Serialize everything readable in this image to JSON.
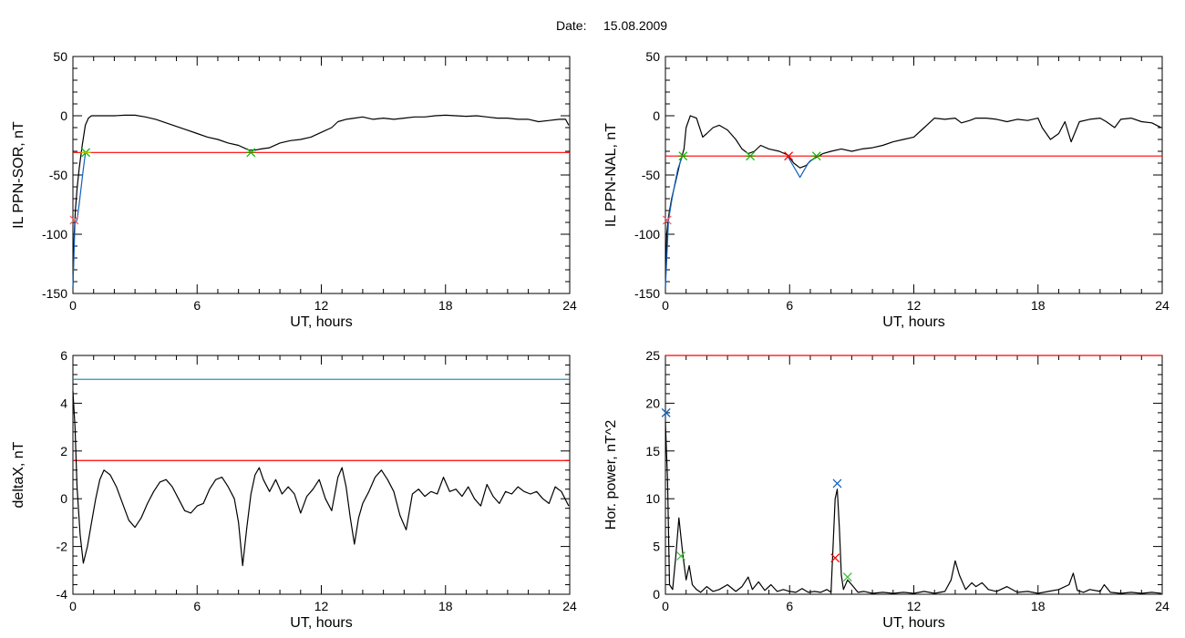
{
  "header": {
    "date_label": "Date:",
    "date_value": "15.08.2009"
  },
  "chart_data": [
    {
      "type": "line",
      "ylabel": "IL PPN-SOR, nT",
      "xlabel": "UT, hours",
      "xlim": [
        0,
        24
      ],
      "ylim": [
        -150,
        50
      ],
      "xticks": [
        0,
        6,
        12,
        18,
        24
      ],
      "yticks": [
        -150,
        -100,
        -50,
        0,
        50
      ],
      "grid": false,
      "threshold": {
        "value": -31,
        "color": "#ff0000"
      },
      "series": [
        {
          "color": "#000000",
          "x": [
            0,
            0.06,
            0.12,
            0.2,
            0.3,
            0.45,
            0.6,
            0.75,
            0.9,
            1.2,
            1.6,
            2,
            2.5,
            3,
            3.5,
            4,
            4.5,
            5,
            5.5,
            6,
            6.5,
            7,
            7.5,
            8,
            8.5,
            8.8,
            9.1,
            9.5,
            10,
            10.5,
            11,
            11.5,
            12,
            12.5,
            12.8,
            13.2,
            13.6,
            14,
            14.5,
            15,
            15.5,
            16,
            16.5,
            17,
            17.5,
            18,
            18.5,
            19,
            19.5,
            20,
            20.5,
            21,
            21.5,
            22,
            22.5,
            23,
            23.5,
            23.8,
            23.95
          ],
          "y": [
            -145,
            -100,
            -80,
            -62,
            -45,
            -25,
            -8,
            -2,
            0,
            0,
            0,
            0,
            0.5,
            0.5,
            -1,
            -3,
            -6,
            -9,
            -12,
            -15,
            -18,
            -20,
            -23,
            -25,
            -29,
            -29,
            -28,
            -27,
            -23,
            -21,
            -20,
            -18,
            -14,
            -10,
            -5,
            -3,
            -2,
            -1,
            -3,
            -2,
            -3,
            -2,
            -1,
            -1,
            0,
            0.5,
            0,
            -0.5,
            0,
            -1,
            -2,
            -2,
            -3,
            -3,
            -5,
            -4,
            -3,
            -3,
            -8
          ]
        },
        {
          "color": "#1060c0",
          "x": [
            0,
            0.1,
            0.2,
            0.3,
            0.4,
            0.5,
            0.6
          ],
          "y": [
            -145,
            -90,
            -88,
            -75,
            -60,
            -45,
            -32
          ]
        }
      ],
      "markers": [
        {
          "x": 0.62,
          "y": -31,
          "colors": [
            "#00c000",
            "#c0c000"
          ]
        },
        {
          "x": 8.6,
          "y": -31,
          "colors": [
            "#00c000",
            "#707000"
          ]
        },
        {
          "x": 0.06,
          "y": -88,
          "colors": [
            "#ff6060"
          ]
        }
      ]
    },
    {
      "type": "line",
      "ylabel": "IL PPN-NAL, nT",
      "xlabel": "UT, hours",
      "xlim": [
        0,
        24
      ],
      "ylim": [
        -150,
        50
      ],
      "xticks": [
        0,
        6,
        12,
        18,
        24
      ],
      "yticks": [
        -150,
        -100,
        -50,
        0,
        50
      ],
      "grid": false,
      "threshold": {
        "value": -34,
        "color": "#ff0000"
      },
      "series": [
        {
          "color": "#000000",
          "x": [
            0,
            0.06,
            0.15,
            0.3,
            0.5,
            0.7,
            0.9,
            1.0,
            1.2,
            1.5,
            1.8,
            2.0,
            2.3,
            2.6,
            3.0,
            3.4,
            3.7,
            4.0,
            4.3,
            4.6,
            5.0,
            5.5,
            5.9,
            6.2,
            6.5,
            6.8,
            7.0,
            7.3,
            7.6,
            8.0,
            8.5,
            9.0,
            9.5,
            10,
            10.5,
            11,
            11.5,
            12,
            12.5,
            13,
            13.5,
            14,
            14.3,
            14.7,
            15,
            15.5,
            16,
            16.5,
            17,
            17.5,
            18,
            18.2,
            18.6,
            19,
            19.3,
            19.6,
            20,
            20.5,
            21,
            21.3,
            21.7,
            22,
            22.5,
            23,
            23.5,
            23.95
          ],
          "y": [
            -145,
            -100,
            -85,
            -70,
            -55,
            -40,
            -28,
            -10,
            0,
            -2,
            -18,
            -15,
            -10,
            -8,
            -12,
            -20,
            -28,
            -32,
            -30,
            -25,
            -28,
            -30,
            -33,
            -40,
            -44,
            -42,
            -38,
            -35,
            -32,
            -30,
            -28,
            -30,
            -28,
            -27,
            -25,
            -22,
            -20,
            -18,
            -10,
            -2,
            -3,
            -2,
            -6,
            -4,
            -2,
            -2,
            -3,
            -5,
            -3,
            -4,
            -2,
            -10,
            -20,
            -15,
            -5,
            -22,
            -5,
            -3,
            -2,
            -5,
            -10,
            -3,
            -2,
            -5,
            -6,
            -10
          ]
        },
        {
          "color": "#1060c0",
          "x": [
            0,
            0.15,
            0.3,
            0.45,
            0.6,
            0.8
          ],
          "y": [
            -145,
            -88,
            -72,
            -58,
            -45,
            -35
          ]
        },
        {
          "color": "#1060c0",
          "x": [
            5.9,
            6.1,
            6.3,
            6.5,
            6.7,
            6.9,
            7.1,
            7.3
          ],
          "y": [
            -34,
            -40,
            -46,
            -52,
            -46,
            -40,
            -37,
            -34
          ]
        }
      ],
      "markers": [
        {
          "x": 0.85,
          "y": -34,
          "colors": [
            "#00c000",
            "#707000"
          ]
        },
        {
          "x": 4.1,
          "y": -34,
          "colors": [
            "#00c000",
            "#707000"
          ]
        },
        {
          "x": 5.95,
          "y": -34,
          "colors": [
            "#ff0000"
          ]
        },
        {
          "x": 7.3,
          "y": -34,
          "colors": [
            "#00c000",
            "#707000"
          ]
        },
        {
          "x": 0.08,
          "y": -88,
          "colors": [
            "#ff6060"
          ]
        }
      ]
    },
    {
      "type": "line",
      "ylabel": "deltaX, nT",
      "xlabel": "UT, hours",
      "xlim": [
        0,
        24
      ],
      "ylim": [
        -4,
        6
      ],
      "xticks": [
        0,
        6,
        12,
        18,
        24
      ],
      "yticks": [
        -4,
        -2,
        0,
        2,
        4,
        6
      ],
      "grid": false,
      "hlines": [
        {
          "value": 5,
          "color": "#1080b0"
        },
        {
          "value": 1.6,
          "color": "#ff0000"
        }
      ],
      "series": [
        {
          "color": "#000000",
          "x": [
            0,
            0.1,
            0.2,
            0.35,
            0.5,
            0.7,
            0.9,
            1.1,
            1.3,
            1.5,
            1.8,
            2.1,
            2.4,
            2.7,
            3.0,
            3.3,
            3.6,
            3.9,
            4.2,
            4.5,
            4.8,
            5.1,
            5.4,
            5.7,
            6.0,
            6.3,
            6.6,
            6.9,
            7.2,
            7.5,
            7.8,
            8.0,
            8.2,
            8.4,
            8.6,
            8.8,
            9.0,
            9.2,
            9.5,
            9.8,
            10.1,
            10.4,
            10.7,
            11.0,
            11.3,
            11.6,
            11.9,
            12.2,
            12.5,
            12.8,
            13.0,
            13.2,
            13.4,
            13.6,
            13.8,
            14.0,
            14.3,
            14.6,
            14.9,
            15.2,
            15.5,
            15.8,
            16.1,
            16.4,
            16.7,
            17.0,
            17.3,
            17.6,
            17.9,
            18.2,
            18.5,
            18.8,
            19.1,
            19.4,
            19.7,
            20.0,
            20.3,
            20.6,
            20.9,
            21.2,
            21.5,
            21.8,
            22.1,
            22.4,
            22.7,
            23.0,
            23.3,
            23.6,
            23.95
          ],
          "y": [
            4.5,
            3,
            0.5,
            -1.5,
            -2.7,
            -2.0,
            -1.0,
            0,
            0.8,
            1.2,
            1.0,
            0.5,
            -0.2,
            -0.9,
            -1.2,
            -0.8,
            -0.2,
            0.3,
            0.7,
            0.8,
            0.5,
            0,
            -0.5,
            -0.6,
            -0.3,
            -0.2,
            0.4,
            0.8,
            0.9,
            0.5,
            0,
            -1.0,
            -2.8,
            -1.2,
            0.2,
            1.0,
            1.3,
            0.8,
            0.3,
            0.8,
            0.2,
            0.5,
            0.2,
            -0.6,
            0.1,
            0.4,
            0.8,
            0,
            -0.5,
            0.9,
            1.3,
            0.5,
            -0.8,
            -1.9,
            -0.8,
            -0.2,
            0.3,
            0.9,
            1.2,
            0.8,
            0.3,
            -0.7,
            -1.3,
            0.2,
            0.4,
            0.1,
            0.3,
            0.2,
            0.9,
            0.3,
            0.4,
            0.1,
            0.5,
            0,
            -0.3,
            0.6,
            0.1,
            -0.2,
            0.3,
            0.2,
            0.5,
            0.3,
            0.2,
            0.3,
            0,
            -0.2,
            0.5,
            0.3,
            -0.3
          ]
        }
      ]
    },
    {
      "type": "line",
      "ylabel": "Hor. power, nT^2",
      "xlabel": "UT, hours",
      "xlim": [
        0,
        24
      ],
      "ylim": [
        0,
        25
      ],
      "xticks": [
        0,
        6,
        12,
        18,
        24
      ],
      "yticks": [
        0,
        5,
        10,
        15,
        20,
        25
      ],
      "grid": false,
      "threshold": {
        "value": 25,
        "color": "#ff0000"
      },
      "series": [
        {
          "color": "#000000",
          "x": [
            0,
            0.1,
            0.2,
            0.35,
            0.5,
            0.65,
            0.75,
            0.85,
            1.0,
            1.15,
            1.3,
            1.5,
            1.7,
            2.0,
            2.3,
            2.6,
            3.0,
            3.4,
            3.7,
            4.0,
            4.2,
            4.5,
            4.8,
            5.1,
            5.4,
            5.7,
            6.0,
            6.3,
            6.6,
            6.9,
            7.2,
            7.5,
            7.8,
            8.0,
            8.1,
            8.2,
            8.3,
            8.4,
            8.5,
            8.6,
            8.8,
            9.0,
            9.3,
            9.6,
            10,
            10.5,
            11,
            11.5,
            12,
            12.5,
            13,
            13.5,
            13.8,
            14.0,
            14.2,
            14.5,
            14.8,
            15.0,
            15.3,
            15.6,
            16,
            16.5,
            17,
            17.5,
            18,
            18.5,
            19,
            19.5,
            19.7,
            19.9,
            20.2,
            20.5,
            21,
            21.2,
            21.5,
            22,
            22.5,
            23,
            23.5,
            23.95
          ],
          "y": [
            18,
            12,
            1,
            0.5,
            4,
            8,
            6,
            4,
            1.5,
            3,
            1,
            0.5,
            0.2,
            0.8,
            0.3,
            0.5,
            1,
            0.3,
            0.8,
            1.8,
            0.5,
            1.3,
            0.4,
            1,
            0.3,
            0.5,
            0.3,
            0.2,
            0.6,
            0.2,
            0.3,
            0.2,
            0.5,
            0.2,
            5,
            10,
            11,
            7,
            2,
            0.5,
            1.5,
            1,
            0.2,
            0.3,
            0.1,
            0.2,
            0.1,
            0.2,
            0.1,
            0.3,
            0.1,
            0.3,
            1.5,
            3.5,
            2,
            0.5,
            1.2,
            0.8,
            1.2,
            0.5,
            0.3,
            0.8,
            0.2,
            0.3,
            0.1,
            0.3,
            0.5,
            1,
            2.2,
            0.4,
            0.2,
            0.5,
            0.3,
            1,
            0.2,
            0.1,
            0.2,
            0.1,
            0.2,
            0.1
          ]
        }
      ],
      "markers": [
        {
          "x": 0.03,
          "y": 19,
          "colors": [
            "#1060c0"
          ]
        },
        {
          "x": 8.3,
          "y": 11.6,
          "colors": [
            "#1060c0"
          ]
        },
        {
          "x": 8.2,
          "y": 3.8,
          "colors": [
            "#ff0000"
          ]
        },
        {
          "x": 0.75,
          "y": 4,
          "colors": [
            "#40c040"
          ]
        },
        {
          "x": 8.8,
          "y": 1.8,
          "colors": [
            "#40c040"
          ]
        }
      ]
    }
  ]
}
